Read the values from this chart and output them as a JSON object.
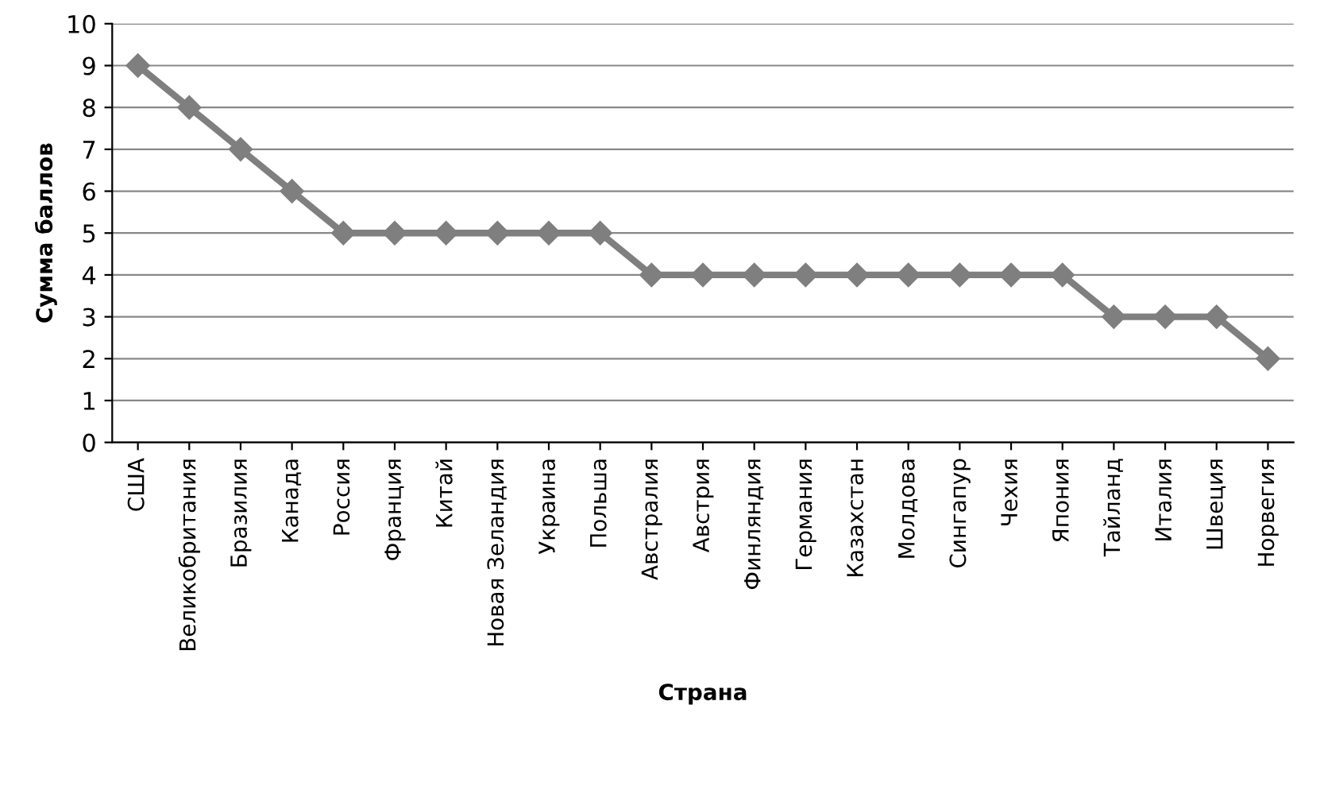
{
  "chart_data": {
    "type": "line",
    "xlabel": "Страна",
    "ylabel": "Сумма баллов",
    "categories": [
      "США",
      "Великобритания",
      "Бразилия",
      "Канада",
      "Россия",
      "Франция",
      "Китай",
      "Новая Зеландия",
      "Украина",
      "Польша",
      "Австралия",
      "Австрия",
      "Финляндия",
      "Германия",
      "Казахстан",
      "Молдова",
      "Сингапур",
      "Чехия",
      "Япония",
      "Тайланд",
      "Италия",
      "Швеция",
      "Норвегия"
    ],
    "series": [
      {
        "color": "#7f7f7f",
        "values": [
          9,
          8,
          7,
          6,
          5,
          5,
          5,
          5,
          5,
          5,
          4,
          4,
          4,
          4,
          4,
          4,
          4,
          4,
          4,
          3,
          3,
          3,
          2
        ]
      }
    ],
    "ylim": [
      0,
      10
    ],
    "yticks": [
      0,
      1,
      2,
      3,
      4,
      5,
      6,
      7,
      8,
      9,
      10
    ],
    "grid": "y",
    "marker": "diamond",
    "line_style": "solid"
  }
}
